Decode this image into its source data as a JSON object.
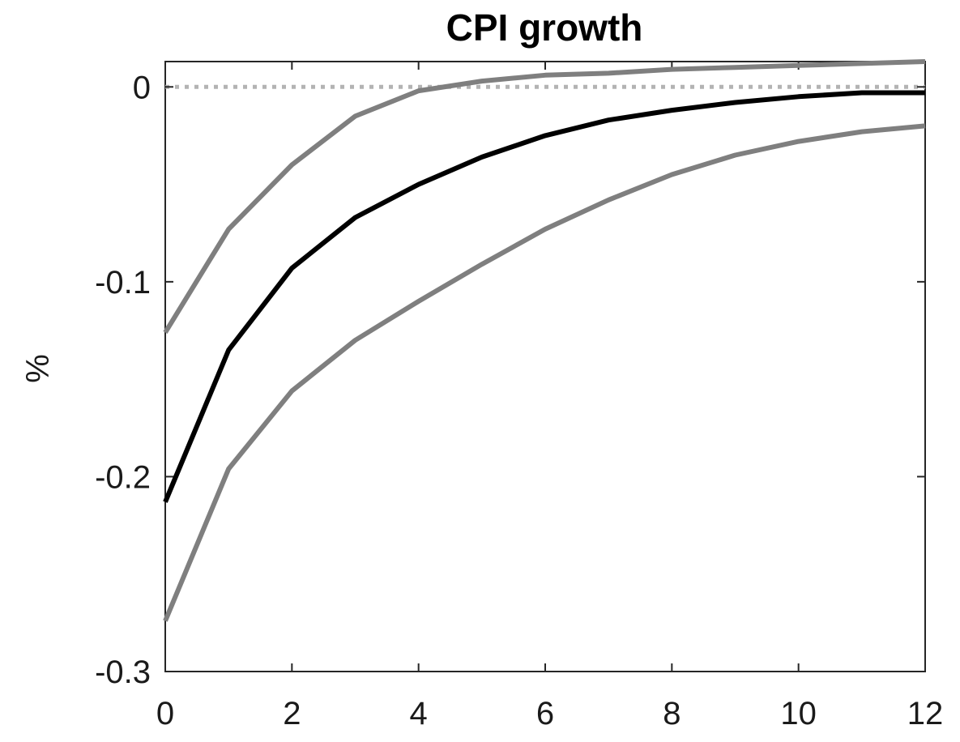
{
  "chart_data": {
    "type": "line",
    "title": "CPI growth",
    "xlabel": "",
    "ylabel": "%",
    "xlim": [
      0,
      12
    ],
    "ylim": [
      -0.3,
      0.013
    ],
    "xticks": [
      0,
      2,
      4,
      6,
      8,
      10,
      12
    ],
    "xtick_labels": [
      "0",
      "2",
      "4",
      "6",
      "8",
      "10",
      "12"
    ],
    "yticks": [
      0,
      -0.1,
      -0.2,
      -0.3
    ],
    "ytick_labels": [
      "0",
      "-0.1",
      "-0.2",
      "-0.3"
    ],
    "grid": false,
    "legend": "none",
    "x": [
      0,
      1,
      2,
      3,
      4,
      5,
      6,
      7,
      8,
      9,
      10,
      11,
      12
    ],
    "series": [
      {
        "role": "upper band",
        "color": "#7f7f7f",
        "values": [
          -0.126,
          -0.073,
          -0.04,
          -0.015,
          -0.002,
          0.003,
          0.006,
          0.007,
          0.009,
          0.01,
          0.011,
          0.012,
          0.013
        ]
      },
      {
        "role": "median",
        "color": "#000000",
        "values": [
          -0.213,
          -0.135,
          -0.093,
          -0.067,
          -0.05,
          -0.036,
          -0.025,
          -0.017,
          -0.012,
          -0.008,
          -0.005,
          -0.003,
          -0.003
        ]
      },
      {
        "role": "lower band",
        "color": "#7f7f7f",
        "values": [
          -0.274,
          -0.196,
          -0.156,
          -0.13,
          -0.11,
          -0.091,
          -0.073,
          -0.058,
          -0.045,
          -0.035,
          -0.028,
          -0.023,
          -0.02
        ]
      }
    ],
    "reference_line": {
      "y": 0,
      "style": "dotted",
      "color": "#b3b3b3"
    }
  }
}
